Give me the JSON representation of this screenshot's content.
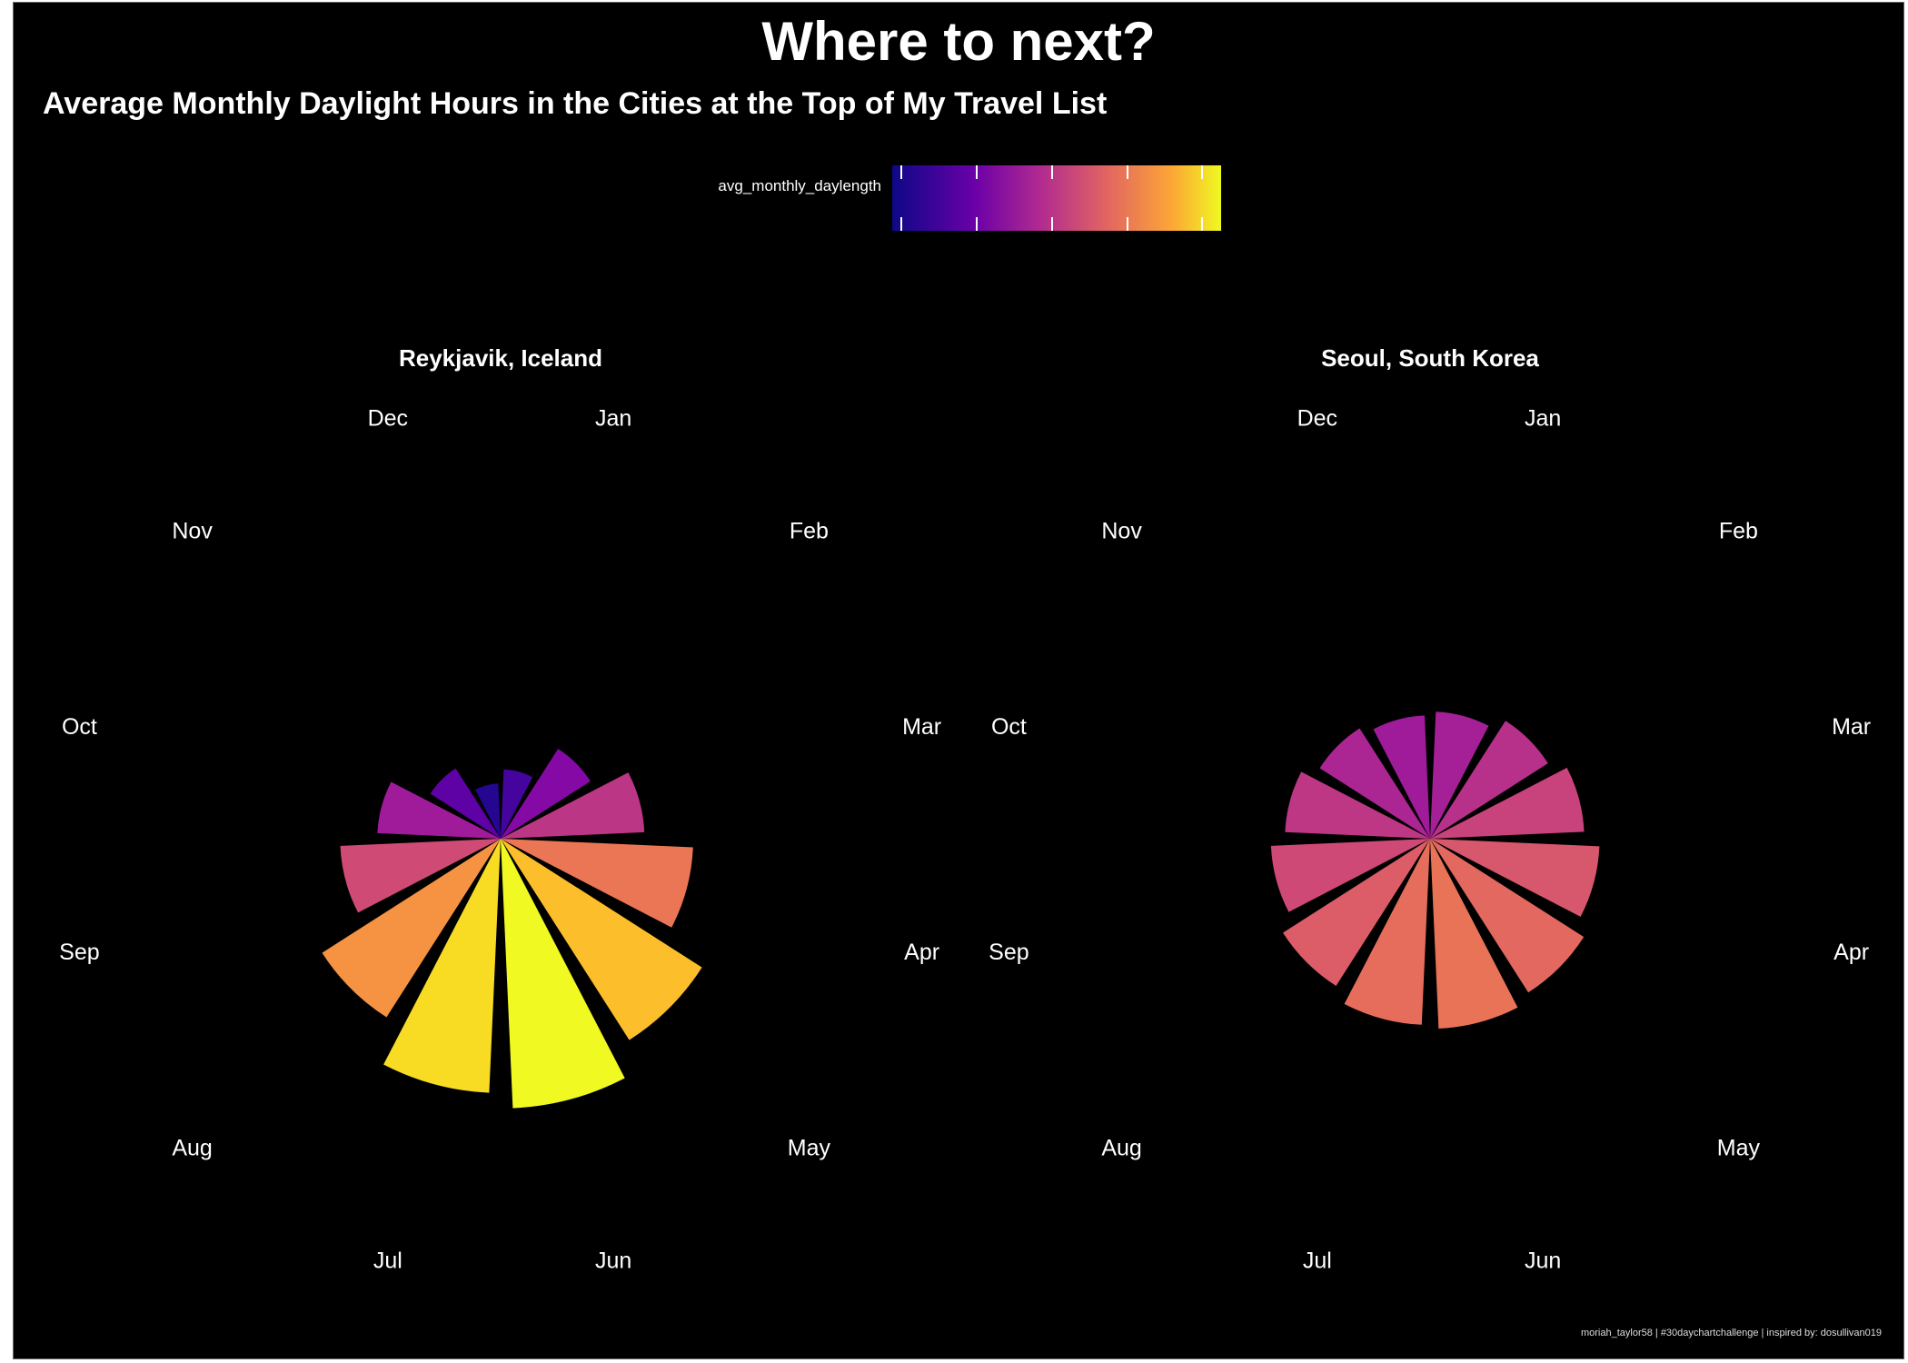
{
  "chart_data": {
    "type": "polar-bar",
    "title": "Where to next?",
    "subtitle": "Average Monthly Daylight Hours in the Cities at the Top of My Travel List",
    "legend": {
      "title": "avg_monthly_daylength",
      "placement": "top",
      "scale": "plasma",
      "ticks": [
        4,
        8,
        12,
        16,
        20
      ],
      "range": [
        3.5,
        21
      ]
    },
    "radial_max": 22,
    "categories": [
      "Jan",
      "Feb",
      "Mar",
      "Apr",
      "May",
      "Jun",
      "Jul",
      "Aug",
      "Sep",
      "Oct",
      "Nov",
      "Dec"
    ],
    "panels": [
      {
        "name": "Reykjavik, Iceland",
        "values": [
          5.4,
          8.3,
          11.2,
          15.0,
          18.6,
          21.0,
          19.8,
          16.5,
          12.5,
          9.6,
          6.5,
          4.3
        ]
      },
      {
        "name": "Seoul, South Korea",
        "values": [
          9.9,
          10.9,
          12.0,
          13.2,
          14.2,
          14.8,
          14.5,
          13.6,
          12.4,
          11.3,
          10.2,
          9.6
        ]
      }
    ]
  },
  "colors": {
    "background": "#000000",
    "text": "#ffffff"
  },
  "credits": "moriah_taylor58 | #30daychartchallenge | inspired by: dosullivan019"
}
